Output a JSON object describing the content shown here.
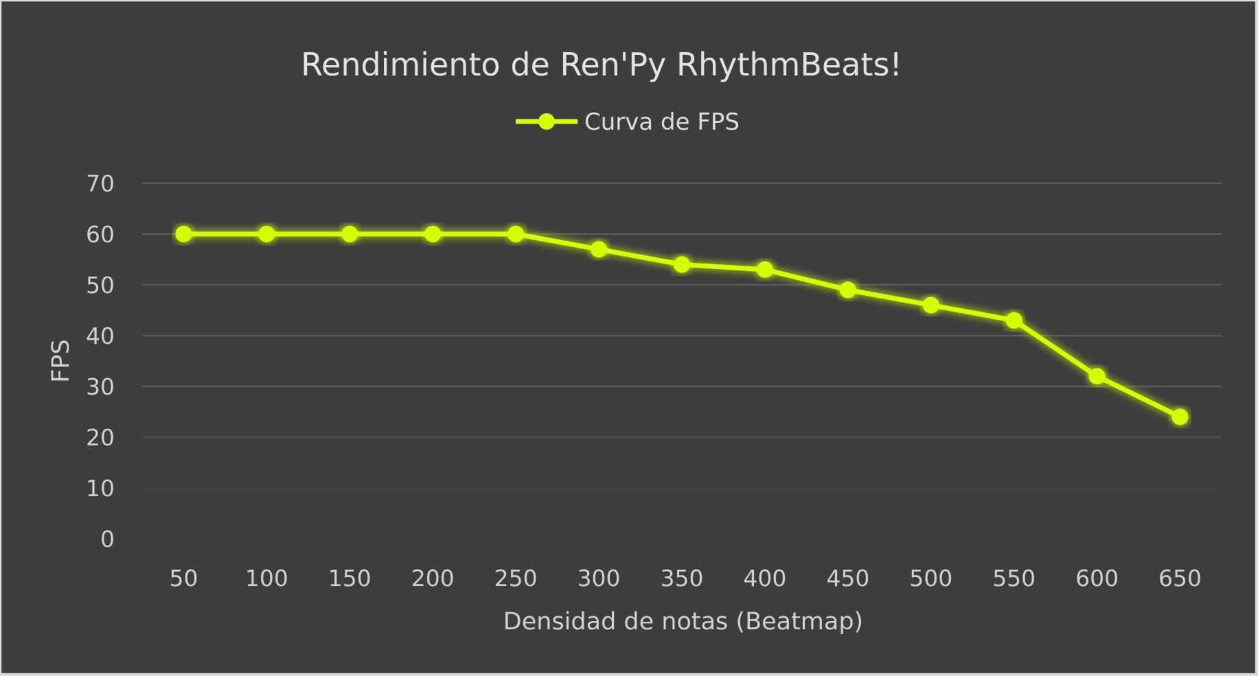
{
  "chart_data": {
    "type": "line",
    "title": "Rendimiento de Ren'Py RhythmBeats!",
    "xlabel": "Densidad de notas (Beatmap)",
    "ylabel": "FPS",
    "categories": [
      "50",
      "100",
      "150",
      "200",
      "250",
      "300",
      "350",
      "400",
      "450",
      "500",
      "550",
      "600",
      "650"
    ],
    "series": [
      {
        "name": "Curva de FPS",
        "values": [
          60,
          60,
          60,
          60,
          60,
          57,
          54,
          53,
          49,
          46,
          43,
          32,
          24
        ],
        "color": "#d4ff00"
      }
    ],
    "ylim": [
      0,
      70
    ],
    "yticks": [
      "0",
      "10",
      "20",
      "30",
      "40",
      "50",
      "60",
      "70"
    ],
    "grid": true,
    "legend_position": "top-center",
    "background_color": "#3d3d3d",
    "grid_color": "#5b5b5b"
  }
}
